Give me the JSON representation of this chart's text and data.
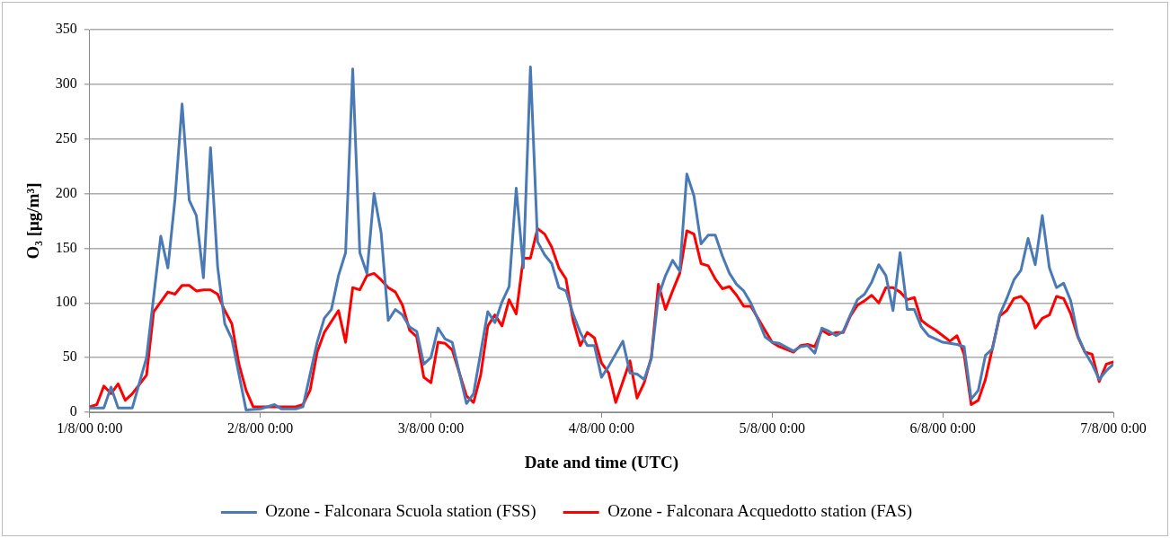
{
  "chart_data": {
    "type": "line",
    "xlabel": "Date and time (UTC)",
    "ylabel": "O₃ [μg/m³]",
    "ylim": [
      0,
      350
    ],
    "yticks": [
      0,
      50,
      100,
      150,
      200,
      250,
      300,
      350
    ],
    "xlim": [
      "2000-08-01T00:00",
      "2000-08-07T00:00"
    ],
    "xticks": [
      {
        "value": "2000-08-01T00:00",
        "label": "1/8/00 0:00"
      },
      {
        "value": "2000-08-02T00:00",
        "label": "2/8/00 0:00"
      },
      {
        "value": "2000-08-03T00:00",
        "label": "3/8/00 0:00"
      },
      {
        "value": "2000-08-04T00:00",
        "label": "4/8/00 0:00"
      },
      {
        "value": "2000-08-05T00:00",
        "label": "5/8/00 0:00"
      },
      {
        "value": "2000-08-06T00:00",
        "label": "6/8/00 0:00"
      },
      {
        "value": "2000-08-07T00:00",
        "label": "7/8/00 0:00"
      }
    ],
    "grid": "y",
    "legend": "bottom",
    "marker": "none",
    "line_style": "solid",
    "series": [
      {
        "name": "Ozone - Falconara Scuola station (FSS)",
        "color": "#4a7ab5",
        "x": [
          "2000-08-01T00:00",
          "2000-08-01T02:00",
          "2000-08-01T03:00",
          "2000-08-01T04:00",
          "2000-08-01T06:00",
          "2000-08-01T08:00",
          "2000-08-01T10:00",
          "2000-08-01T11:00",
          "2000-08-01T12:00",
          "2000-08-01T13:00",
          "2000-08-01T14:00",
          "2000-08-01T15:00",
          "2000-08-01T16:00",
          "2000-08-01T17:00",
          "2000-08-01T18:00",
          "2000-08-01T19:00",
          "2000-08-01T20:00",
          "2000-08-01T22:00",
          "2000-08-02T00:00",
          "2000-08-02T02:00",
          "2000-08-02T03:00",
          "2000-08-02T05:00",
          "2000-08-02T06:00",
          "2000-08-02T08:00",
          "2000-08-02T09:00",
          "2000-08-02T10:00",
          "2000-08-02T11:00",
          "2000-08-02T12:00",
          "2000-08-02T13:00",
          "2000-08-02T14:00",
          "2000-08-02T15:00",
          "2000-08-02T16:00",
          "2000-08-02T17:00",
          "2000-08-02T18:00",
          "2000-08-02T19:00",
          "2000-08-02T20:00",
          "2000-08-02T21:00",
          "2000-08-02T22:00",
          "2000-08-02T23:00",
          "2000-08-03T00:00",
          "2000-08-03T01:00",
          "2000-08-03T02:00",
          "2000-08-03T03:00",
          "2000-08-03T05:00",
          "2000-08-03T06:00",
          "2000-08-03T08:00",
          "2000-08-03T09:00",
          "2000-08-03T10:00",
          "2000-08-03T11:00",
          "2000-08-03T12:00",
          "2000-08-03T13:00",
          "2000-08-03T14:00",
          "2000-08-03T15:00",
          "2000-08-03T16:00",
          "2000-08-03T17:00",
          "2000-08-03T18:00",
          "2000-08-03T19:00",
          "2000-08-03T20:00",
          "2000-08-03T21:00",
          "2000-08-03T22:00",
          "2000-08-03T23:00",
          "2000-08-04T00:00",
          "2000-08-04T01:00",
          "2000-08-04T03:00",
          "2000-08-04T04:00",
          "2000-08-04T05:00",
          "2000-08-04T06:00",
          "2000-08-04T07:00",
          "2000-08-04T08:00",
          "2000-08-04T09:00",
          "2000-08-04T10:00",
          "2000-08-04T11:00",
          "2000-08-04T12:00",
          "2000-08-04T13:00",
          "2000-08-04T14:00",
          "2000-08-04T15:00",
          "2000-08-04T16:00",
          "2000-08-04T17:00",
          "2000-08-04T18:00",
          "2000-08-04T19:00",
          "2000-08-04T20:00",
          "2000-08-04T21:00",
          "2000-08-04T22:00",
          "2000-08-04T23:00",
          "2000-08-05T00:00",
          "2000-08-05T01:00",
          "2000-08-05T03:00",
          "2000-08-05T04:00",
          "2000-08-05T05:00",
          "2000-08-05T06:00",
          "2000-08-05T07:00",
          "2000-08-05T08:00",
          "2000-08-05T09:00",
          "2000-08-05T10:00",
          "2000-08-05T11:00",
          "2000-08-05T12:00",
          "2000-08-05T13:00",
          "2000-08-05T14:00",
          "2000-08-05T15:00",
          "2000-08-05T16:00",
          "2000-08-05T17:00",
          "2000-08-05T18:00",
          "2000-08-05T19:00",
          "2000-08-05T20:00",
          "2000-08-05T21:00",
          "2000-08-05T22:00",
          "2000-08-05T23:00",
          "2000-08-06T00:00",
          "2000-08-06T01:00",
          "2000-08-06T02:00",
          "2000-08-06T03:00",
          "2000-08-06T04:00",
          "2000-08-06T05:00",
          "2000-08-06T06:00",
          "2000-08-06T07:00",
          "2000-08-06T08:00",
          "2000-08-06T09:00",
          "2000-08-06T10:00",
          "2000-08-06T11:00",
          "2000-08-06T12:00",
          "2000-08-06T13:00",
          "2000-08-06T14:00",
          "2000-08-06T15:00",
          "2000-08-06T16:00",
          "2000-08-06T17:00",
          "2000-08-06T18:00",
          "2000-08-06T19:00",
          "2000-08-06T20:00",
          "2000-08-06T21:00",
          "2000-08-06T22:00",
          "2000-08-06T23:00",
          "2000-08-07T00:00"
        ],
        "values": [
          4,
          4,
          23,
          4,
          4,
          50,
          161,
          132,
          195,
          282,
          194,
          180,
          123,
          242,
          133,
          81,
          67,
          2,
          3,
          7,
          3,
          3,
          5,
          64,
          86,
          94,
          125,
          146,
          314,
          146,
          127,
          200,
          164,
          84,
          94,
          89,
          78,
          74,
          44,
          50,
          77,
          67,
          64,
          8,
          17,
          92,
          82,
          101,
          115,
          205,
          132,
          316,
          156,
          144,
          136,
          114,
          111,
          90,
          73,
          61,
          61,
          32,
          42,
          65,
          36,
          35,
          30,
          49,
          106,
          125,
          139,
          129,
          218,
          198,
          154,
          162,
          162,
          143,
          127,
          117,
          111,
          100,
          85,
          69,
          64,
          63,
          56,
          60,
          61,
          54,
          77,
          74,
          70,
          74,
          89,
          103,
          108,
          119,
          135,
          125,
          93,
          146,
          94,
          94,
          78,
          70,
          67,
          64,
          63,
          62,
          60,
          12,
          20,
          52,
          58,
          89,
          104,
          121,
          130,
          159,
          135,
          180,
          132,
          114,
          118,
          102,
          70,
          55,
          44,
          30,
          38,
          44
        ]
      },
      {
        "name": "Ozone - Falconara Acquedotto station (FAS)",
        "color": "#ff0000",
        "x": [
          "2000-08-01T00:00",
          "2000-08-01T01:00",
          "2000-08-01T02:00",
          "2000-08-01T03:00",
          "2000-08-01T04:00",
          "2000-08-01T05:00",
          "2000-08-01T06:00",
          "2000-08-01T08:00",
          "2000-08-01T09:00",
          "2000-08-01T10:00",
          "2000-08-01T11:00",
          "2000-08-01T12:00",
          "2000-08-01T13:00",
          "2000-08-01T14:00",
          "2000-08-01T15:00",
          "2000-08-01T16:00",
          "2000-08-01T17:00",
          "2000-08-01T18:00",
          "2000-08-01T19:00",
          "2000-08-01T20:00",
          "2000-08-01T21:00",
          "2000-08-01T22:00",
          "2000-08-01T23:00",
          "2000-08-02T05:00",
          "2000-08-02T06:00",
          "2000-08-02T07:00",
          "2000-08-02T08:00",
          "2000-08-02T09:00",
          "2000-08-02T11:00",
          "2000-08-02T12:00",
          "2000-08-02T13:00",
          "2000-08-02T14:00",
          "2000-08-02T15:00",
          "2000-08-02T16:00",
          "2000-08-02T17:00",
          "2000-08-02T18:00",
          "2000-08-02T19:00",
          "2000-08-02T20:00",
          "2000-08-02T21:00",
          "2000-08-02T22:00",
          "2000-08-02T23:00",
          "2000-08-03T00:00",
          "2000-08-03T01:00",
          "2000-08-03T02:00",
          "2000-08-03T03:00",
          "2000-08-03T05:00",
          "2000-08-03T06:00",
          "2000-08-03T07:00",
          "2000-08-03T08:00",
          "2000-08-03T09:00",
          "2000-08-03T10:00",
          "2000-08-03T11:00",
          "2000-08-03T12:00",
          "2000-08-03T13:00",
          "2000-08-03T14:00",
          "2000-08-03T15:00",
          "2000-08-03T16:00",
          "2000-08-03T17:00",
          "2000-08-03T18:00",
          "2000-08-03T19:00",
          "2000-08-03T20:00",
          "2000-08-03T21:00",
          "2000-08-03T22:00",
          "2000-08-03T23:00",
          "2000-08-04T00:00",
          "2000-08-04T01:00",
          "2000-08-04T02:00",
          "2000-08-04T03:00",
          "2000-08-04T04:00",
          "2000-08-04T05:00",
          "2000-08-04T06:00",
          "2000-08-04T07:00",
          "2000-08-04T08:00",
          "2000-08-04T09:00",
          "2000-08-04T10:00",
          "2000-08-04T11:00",
          "2000-08-04T12:00",
          "2000-08-04T13:00",
          "2000-08-04T14:00",
          "2000-08-04T15:00",
          "2000-08-04T16:00",
          "2000-08-04T17:00",
          "2000-08-04T18:00",
          "2000-08-04T19:00",
          "2000-08-04T20:00",
          "2000-08-04T21:00",
          "2000-08-04T22:00",
          "2000-08-04T23:00",
          "2000-08-05T00:00",
          "2000-08-05T01:00",
          "2000-08-05T03:00",
          "2000-08-05T04:00",
          "2000-08-05T05:00",
          "2000-08-05T06:00",
          "2000-08-05T07:00",
          "2000-08-05T08:00",
          "2000-08-05T09:00",
          "2000-08-05T10:00",
          "2000-08-05T11:00",
          "2000-08-05T12:00",
          "2000-08-05T13:00",
          "2000-08-05T14:00",
          "2000-08-05T15:00",
          "2000-08-05T16:00",
          "2000-08-05T17:00",
          "2000-08-05T18:00",
          "2000-08-05T19:00",
          "2000-08-05T20:00",
          "2000-08-05T21:00",
          "2000-08-05T22:00",
          "2000-08-05T23:00",
          "2000-08-06T00:00",
          "2000-08-06T01:00",
          "2000-08-06T02:00",
          "2000-08-06T03:00",
          "2000-08-06T04:00",
          "2000-08-06T05:00",
          "2000-08-06T06:00",
          "2000-08-06T07:00",
          "2000-08-06T08:00",
          "2000-08-06T09:00",
          "2000-08-06T10:00",
          "2000-08-06T11:00",
          "2000-08-06T12:00",
          "2000-08-06T13:00",
          "2000-08-06T14:00",
          "2000-08-06T15:00",
          "2000-08-06T16:00",
          "2000-08-06T17:00",
          "2000-08-06T18:00",
          "2000-08-06T19:00",
          "2000-08-06T20:00",
          "2000-08-06T21:00",
          "2000-08-06T22:00",
          "2000-08-06T23:00",
          "2000-08-07T00:00"
        ],
        "values": [
          5,
          7,
          24,
          17,
          26,
          11,
          17,
          34,
          92,
          101,
          110,
          108,
          116,
          116,
          111,
          112,
          112,
          108,
          93,
          81,
          44,
          20,
          5,
          5,
          7,
          20,
          55,
          73,
          93,
          64,
          114,
          112,
          125,
          127,
          121,
          114,
          110,
          98,
          75,
          69,
          32,
          27,
          64,
          63,
          57,
          15,
          9,
          34,
          79,
          89,
          79,
          103,
          90,
          141,
          141,
          168,
          163,
          151,
          132,
          122,
          84,
          61,
          73,
          68,
          45,
          36,
          9,
          28,
          47,
          13,
          27,
          50,
          117,
          94,
          111,
          127,
          166,
          163,
          136,
          134,
          122,
          113,
          115,
          107,
          97,
          97,
          86,
          75,
          64,
          60,
          55,
          61,
          62,
          60,
          75,
          71,
          73,
          73,
          88,
          98,
          102,
          107,
          100,
          114,
          114,
          110,
          103,
          105,
          84,
          79,
          75,
          70,
          65,
          70,
          53,
          7,
          11,
          30,
          59,
          88,
          93,
          104,
          106,
          99,
          77,
          86,
          89,
          106,
          104,
          90,
          69,
          55,
          53,
          28,
          44,
          46
        ]
      }
    ]
  }
}
